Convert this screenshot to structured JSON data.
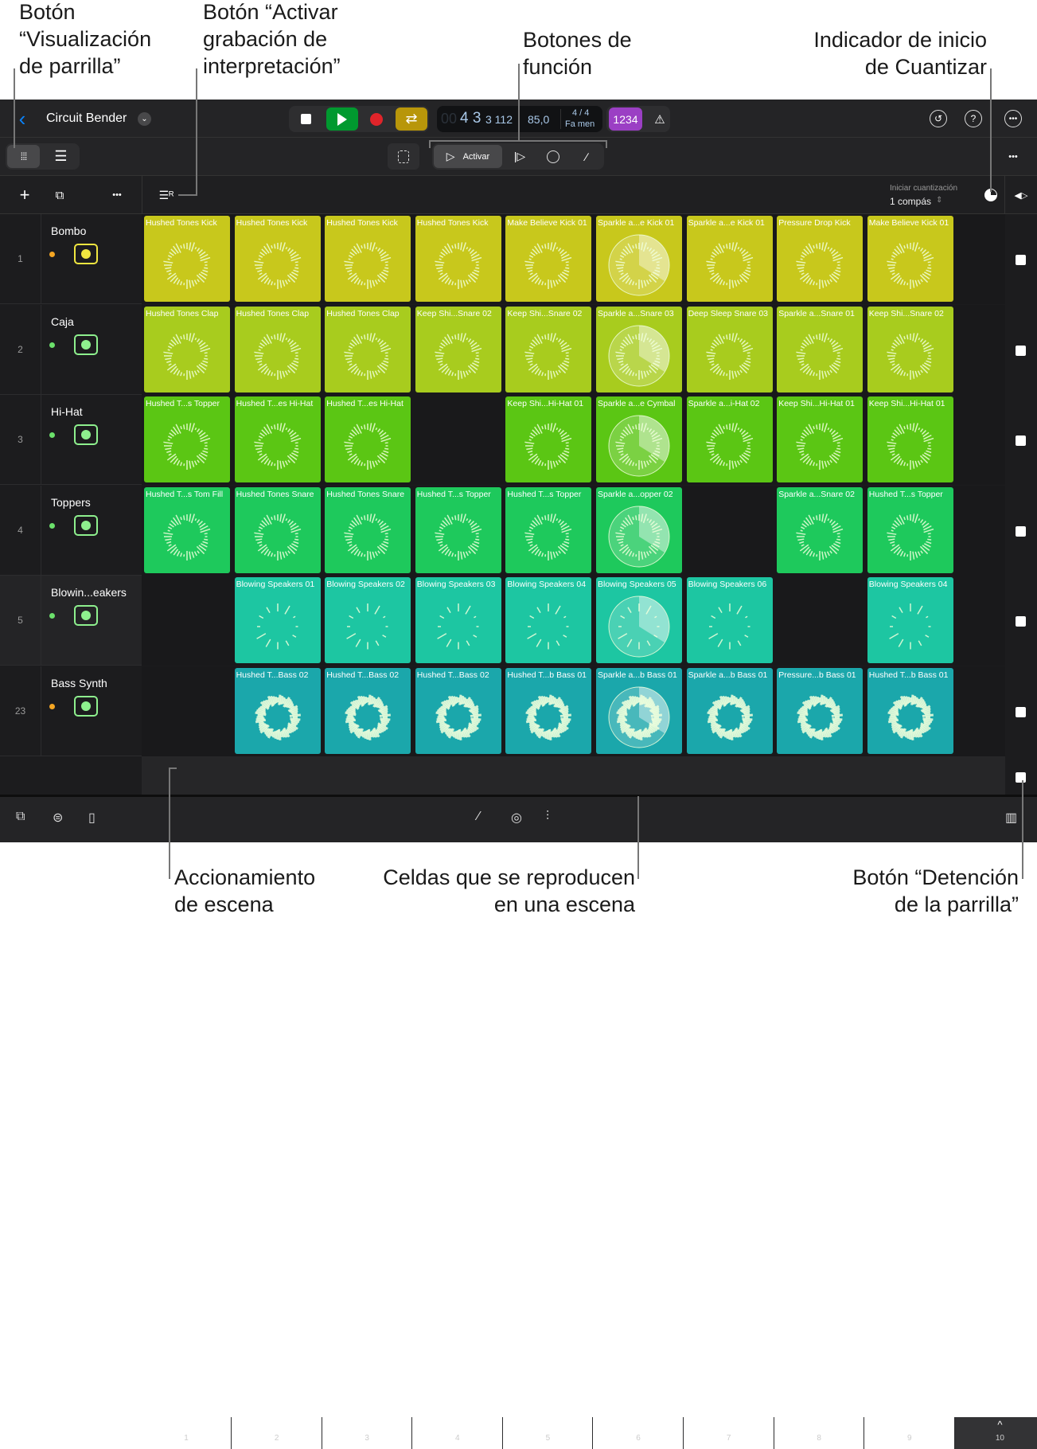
{
  "callouts": {
    "grid_view": "Botón\n“Visualización\nde parrilla”",
    "perf_record": "Botón “Activar\ngrabación de\ninterpretación”",
    "function_buttons": "Botones de\nfunción",
    "quantize_indicator": "Indicador de inicio\nde Cuantizar",
    "scene_trigger": "Accionamiento\nde escena",
    "scene_cells": "Celdas que se reproducen\nen una escena",
    "grid_stop": "Botón “Detención\nde la parrilla”"
  },
  "header": {
    "back_icon": "chevron-left-icon",
    "project": "Circuit Bender",
    "lcd": {
      "dim": "00",
      "bar": "4 3",
      "sub": "3 112",
      "tempo": "85,0",
      "sig": "4 / 4",
      "key": "Fa men"
    },
    "count_in": "1234",
    "colors": {
      "play": "#00992f",
      "record": "#e0242a",
      "cycle": "#b8960a",
      "count_in": "#9b3fc4",
      "accent": "#0a84ff"
    }
  },
  "toolbar": {
    "activate_label": "Activar"
  },
  "quantize": {
    "label": "Iniciar cuantización",
    "value": "1 compás"
  },
  "tracks": [
    {
      "num": "1",
      "name": "Bombo",
      "dot": "#f5a623",
      "icon": "drum-kit-icon",
      "color": "#c8c81c"
    },
    {
      "num": "2",
      "name": "Caja",
      "dot": "#6be06b",
      "icon": "snare-drum-icon",
      "color": "#a8cc1e"
    },
    {
      "num": "3",
      "name": "Hi-Hat",
      "dot": "#6be06b",
      "icon": "hi-hat-icon",
      "color": "#5bc614"
    },
    {
      "num": "4",
      "name": "Toppers",
      "dot": "#6be06b",
      "icon": "drum-machine-icon",
      "color": "#1ec95c"
    },
    {
      "num": "5",
      "name": "Blowin...eakers",
      "dot": "#6be06b",
      "icon": "drum-machine-icon",
      "color": "#1dc6a2"
    },
    {
      "num": "23",
      "name": "Bass Synth",
      "dot": "#f5a623",
      "icon": "synth-icon",
      "color": "#1ba7ab"
    }
  ],
  "cells": [
    [
      "Hushed Tones Kick",
      "Hushed Tones Kick",
      "Hushed Tones Kick",
      "Hushed Tones Kick",
      "Make Believe Kick 01",
      "Sparkle a...e Kick 01",
      "Sparkle a...e Kick 01",
      "Pressure Drop Kick",
      "Make Believe Kick 01"
    ],
    [
      "Hushed Tones Clap",
      "Hushed Tones Clap",
      "Hushed Tones Clap",
      "Keep Shi...Snare 02",
      "Keep Shi...Snare 02",
      "Sparkle a...Snare 03",
      "Deep Sleep Snare 03",
      "Sparkle a...Snare 01",
      "Keep Shi...Snare 02"
    ],
    [
      "Hushed T...s Topper",
      "Hushed T...es Hi-Hat",
      "Hushed T...es Hi-Hat",
      null,
      "Keep Shi...Hi-Hat 01",
      "Sparkle a...e Cymbal",
      "Sparkle a...i-Hat 02",
      "Keep Shi...Hi-Hat 01",
      "Keep Shi...Hi-Hat 01"
    ],
    [
      "Hushed T...s Tom Fill",
      "Hushed Tones Snare",
      "Hushed Tones Snare",
      "Hushed T...s Topper",
      "Hushed T...s Topper",
      "Sparkle a...opper 02",
      null,
      "Sparkle a...Snare 02",
      "Hushed T...s Topper"
    ],
    [
      null,
      "Blowing Speakers 01",
      "Blowing Speakers 02",
      "Blowing Speakers 03",
      "Blowing Speakers 04",
      "Blowing Speakers 05",
      "Blowing Speakers 06",
      null,
      "Blowing Speakers 04"
    ],
    [
      null,
      "Hushed T...Bass 02",
      "Hushed T...Bass 02",
      "Hushed T...Bass 02",
      "Hushed T...b Bass 01",
      "Sparkle a...b Bass 01",
      "Sparkle a...b Bass 01",
      "Pressure...b Bass 01",
      "Hushed T...b Bass 01"
    ]
  ],
  "playing_scene": 6,
  "scenes": [
    "1",
    "2",
    "3",
    "4",
    "5",
    "6",
    "7",
    "8",
    "9",
    "10"
  ]
}
